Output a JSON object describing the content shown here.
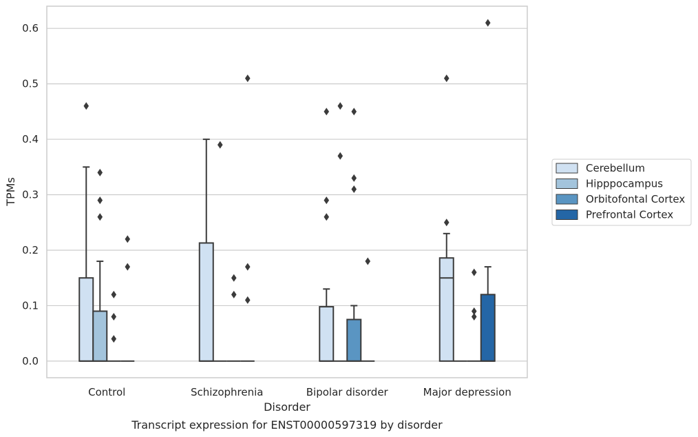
{
  "chart_data": {
    "type": "boxplot",
    "title": "Transcript expression for ENST00000597319 by disorder",
    "xlabel": "Disorder",
    "ylabel": "TPMs",
    "ylim": [
      -0.03,
      0.64
    ],
    "yticks": [
      0.0,
      0.1,
      0.2,
      0.3,
      0.4,
      0.5,
      0.6
    ],
    "ytick_labels": [
      "0.0",
      "0.1",
      "0.2",
      "0.3",
      "0.4",
      "0.5",
      "0.6"
    ],
    "grid": true,
    "legend_position": "right",
    "categories": [
      "Control",
      "Schizophrenia",
      "Bipolar disorder",
      "Major depression"
    ],
    "series": [
      {
        "name": "Cerebellum",
        "color": "#d0e1f2",
        "boxes": [
          {
            "q1": 0,
            "median": 0,
            "q3": 0.15,
            "whisker_low": 0,
            "whisker_high": 0.35,
            "outliers": [
              0.46
            ]
          },
          {
            "q1": 0,
            "median": 0,
            "q3": 0.213,
            "whisker_low": 0,
            "whisker_high": 0.4,
            "outliers": []
          },
          {
            "q1": 0,
            "median": 0,
            "q3": 0.098,
            "whisker_low": 0,
            "whisker_high": 0.13,
            "outliers": [
              0.45,
              0.29,
              0.26
            ]
          },
          {
            "q1": 0,
            "median": 0.15,
            "q3": 0.186,
            "whisker_low": 0,
            "whisker_high": 0.23,
            "outliers": [
              0.51,
              0.25
            ]
          }
        ]
      },
      {
        "name": "Hipppocampus",
        "color": "#a3c4dc",
        "boxes": [
          {
            "q1": 0,
            "median": 0,
            "q3": 0.09,
            "whisker_low": 0,
            "whisker_high": 0.18,
            "outliers": [
              0.34,
              0.29,
              0.26
            ]
          },
          {
            "q1": 0,
            "median": 0,
            "q3": 0,
            "whisker_low": 0,
            "whisker_high": 0,
            "outliers": [
              0.39
            ]
          },
          {
            "q1": 0,
            "median": 0,
            "q3": 0,
            "whisker_low": 0,
            "whisker_high": 0,
            "outliers": [
              0.46,
              0.37
            ]
          },
          {
            "q1": 0,
            "median": 0,
            "q3": 0,
            "whisker_low": 0,
            "whisker_high": 0,
            "outliers": []
          }
        ]
      },
      {
        "name": "Orbitofontal Cortex",
        "color": "#5a95c2",
        "boxes": [
          {
            "q1": 0,
            "median": 0,
            "q3": 0,
            "whisker_low": 0,
            "whisker_high": 0,
            "outliers": [
              0.12,
              0.08,
              0.04
            ]
          },
          {
            "q1": 0,
            "median": 0,
            "q3": 0,
            "whisker_low": 0,
            "whisker_high": 0,
            "outliers": [
              0.15,
              0.12
            ]
          },
          {
            "q1": 0,
            "median": 0,
            "q3": 0.075,
            "whisker_low": 0,
            "whisker_high": 0.1,
            "outliers": [
              0.45,
              0.33,
              0.31
            ]
          },
          {
            "q1": 0,
            "median": 0,
            "q3": 0,
            "whisker_low": 0,
            "whisker_high": 0,
            "outliers": [
              0.16,
              0.09,
              0.08
            ]
          }
        ]
      },
      {
        "name": "Prefrontal Cortex",
        "color": "#2466a6",
        "boxes": [
          {
            "q1": 0,
            "median": 0,
            "q3": 0,
            "whisker_low": 0,
            "whisker_high": 0,
            "outliers": [
              0.22,
              0.17
            ]
          },
          {
            "q1": 0,
            "median": 0,
            "q3": 0,
            "whisker_low": 0,
            "whisker_high": 0,
            "outliers": [
              0.51,
              0.17,
              0.11
            ]
          },
          {
            "q1": 0,
            "median": 0,
            "q3": 0,
            "whisker_low": 0,
            "whisker_high": 0,
            "outliers": [
              0.18
            ]
          },
          {
            "q1": 0,
            "median": 0,
            "q3": 0.12,
            "whisker_low": 0,
            "whisker_high": 0.17,
            "outliers": [
              0.61
            ]
          }
        ]
      }
    ]
  }
}
